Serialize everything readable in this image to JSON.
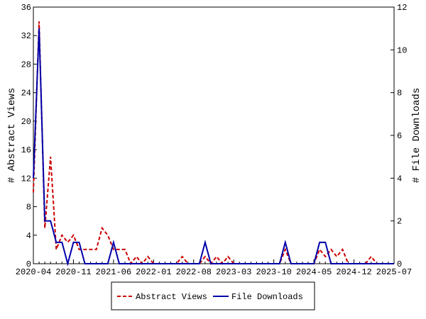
{
  "chart_data": {
    "type": "line",
    "ylabel": "# Abstract Views",
    "y2label": "# File Downloads",
    "x": [
      "2020-04",
      null,
      null,
      null,
      null,
      null,
      null,
      "2020-11",
      null,
      null,
      null,
      null,
      null,
      null,
      "2021-06",
      null,
      null,
      null,
      null,
      null,
      null,
      "2022-01",
      null,
      null,
      null,
      null,
      null,
      null,
      "2022-08",
      null,
      null,
      null,
      null,
      null,
      null,
      "2023-03",
      null,
      null,
      null,
      null,
      null,
      null,
      "2023-10",
      null,
      null,
      null,
      null,
      null,
      null,
      "2024-05",
      null,
      null,
      null,
      null,
      null,
      null,
      "2024-12",
      null,
      null,
      null,
      null,
      null,
      null,
      "2025-07"
    ],
    "ylim": [
      0,
      36
    ],
    "yticks": [
      0,
      4,
      8,
      12,
      16,
      20,
      24,
      28,
      32,
      36
    ],
    "y2lim": [
      0,
      12
    ],
    "y2ticks": [
      0,
      2,
      4,
      6,
      8,
      10,
      12
    ],
    "legend": "bottom",
    "series": [
      {
        "name": "Abstract Views",
        "color": "#cc0000",
        "dashed": true,
        "values": [
          10,
          34,
          5,
          15,
          2,
          4,
          3,
          4,
          2,
          2,
          2,
          2,
          5,
          4,
          2,
          2,
          2,
          0,
          1,
          0,
          1,
          0,
          0,
          0,
          0,
          0,
          1,
          0,
          0,
          0,
          1,
          0,
          1,
          0,
          1,
          0,
          0,
          0,
          0,
          0,
          0,
          0,
          0,
          0,
          2,
          0,
          0,
          0,
          0,
          0,
          2,
          1,
          2,
          1,
          2,
          0,
          0,
          0,
          0,
          1,
          0,
          0,
          0,
          0
        ]
      },
      {
        "name": "File Downloads",
        "color": "#0000aa",
        "dashed": false,
        "axis": "y2",
        "values": [
          4,
          11,
          2,
          2,
          1,
          1,
          0,
          1,
          1,
          0,
          0,
          0,
          0,
          0,
          1,
          0,
          0,
          0,
          0,
          0,
          0,
          0,
          0,
          0,
          0,
          0,
          0,
          0,
          0,
          0,
          1,
          0,
          0,
          0,
          0,
          0,
          0,
          0,
          0,
          0,
          0,
          0,
          0,
          0,
          1,
          0,
          0,
          0,
          0,
          0,
          1,
          1,
          0,
          0,
          0,
          0,
          0,
          0,
          0,
          0,
          0,
          0,
          0,
          0
        ]
      }
    ]
  }
}
